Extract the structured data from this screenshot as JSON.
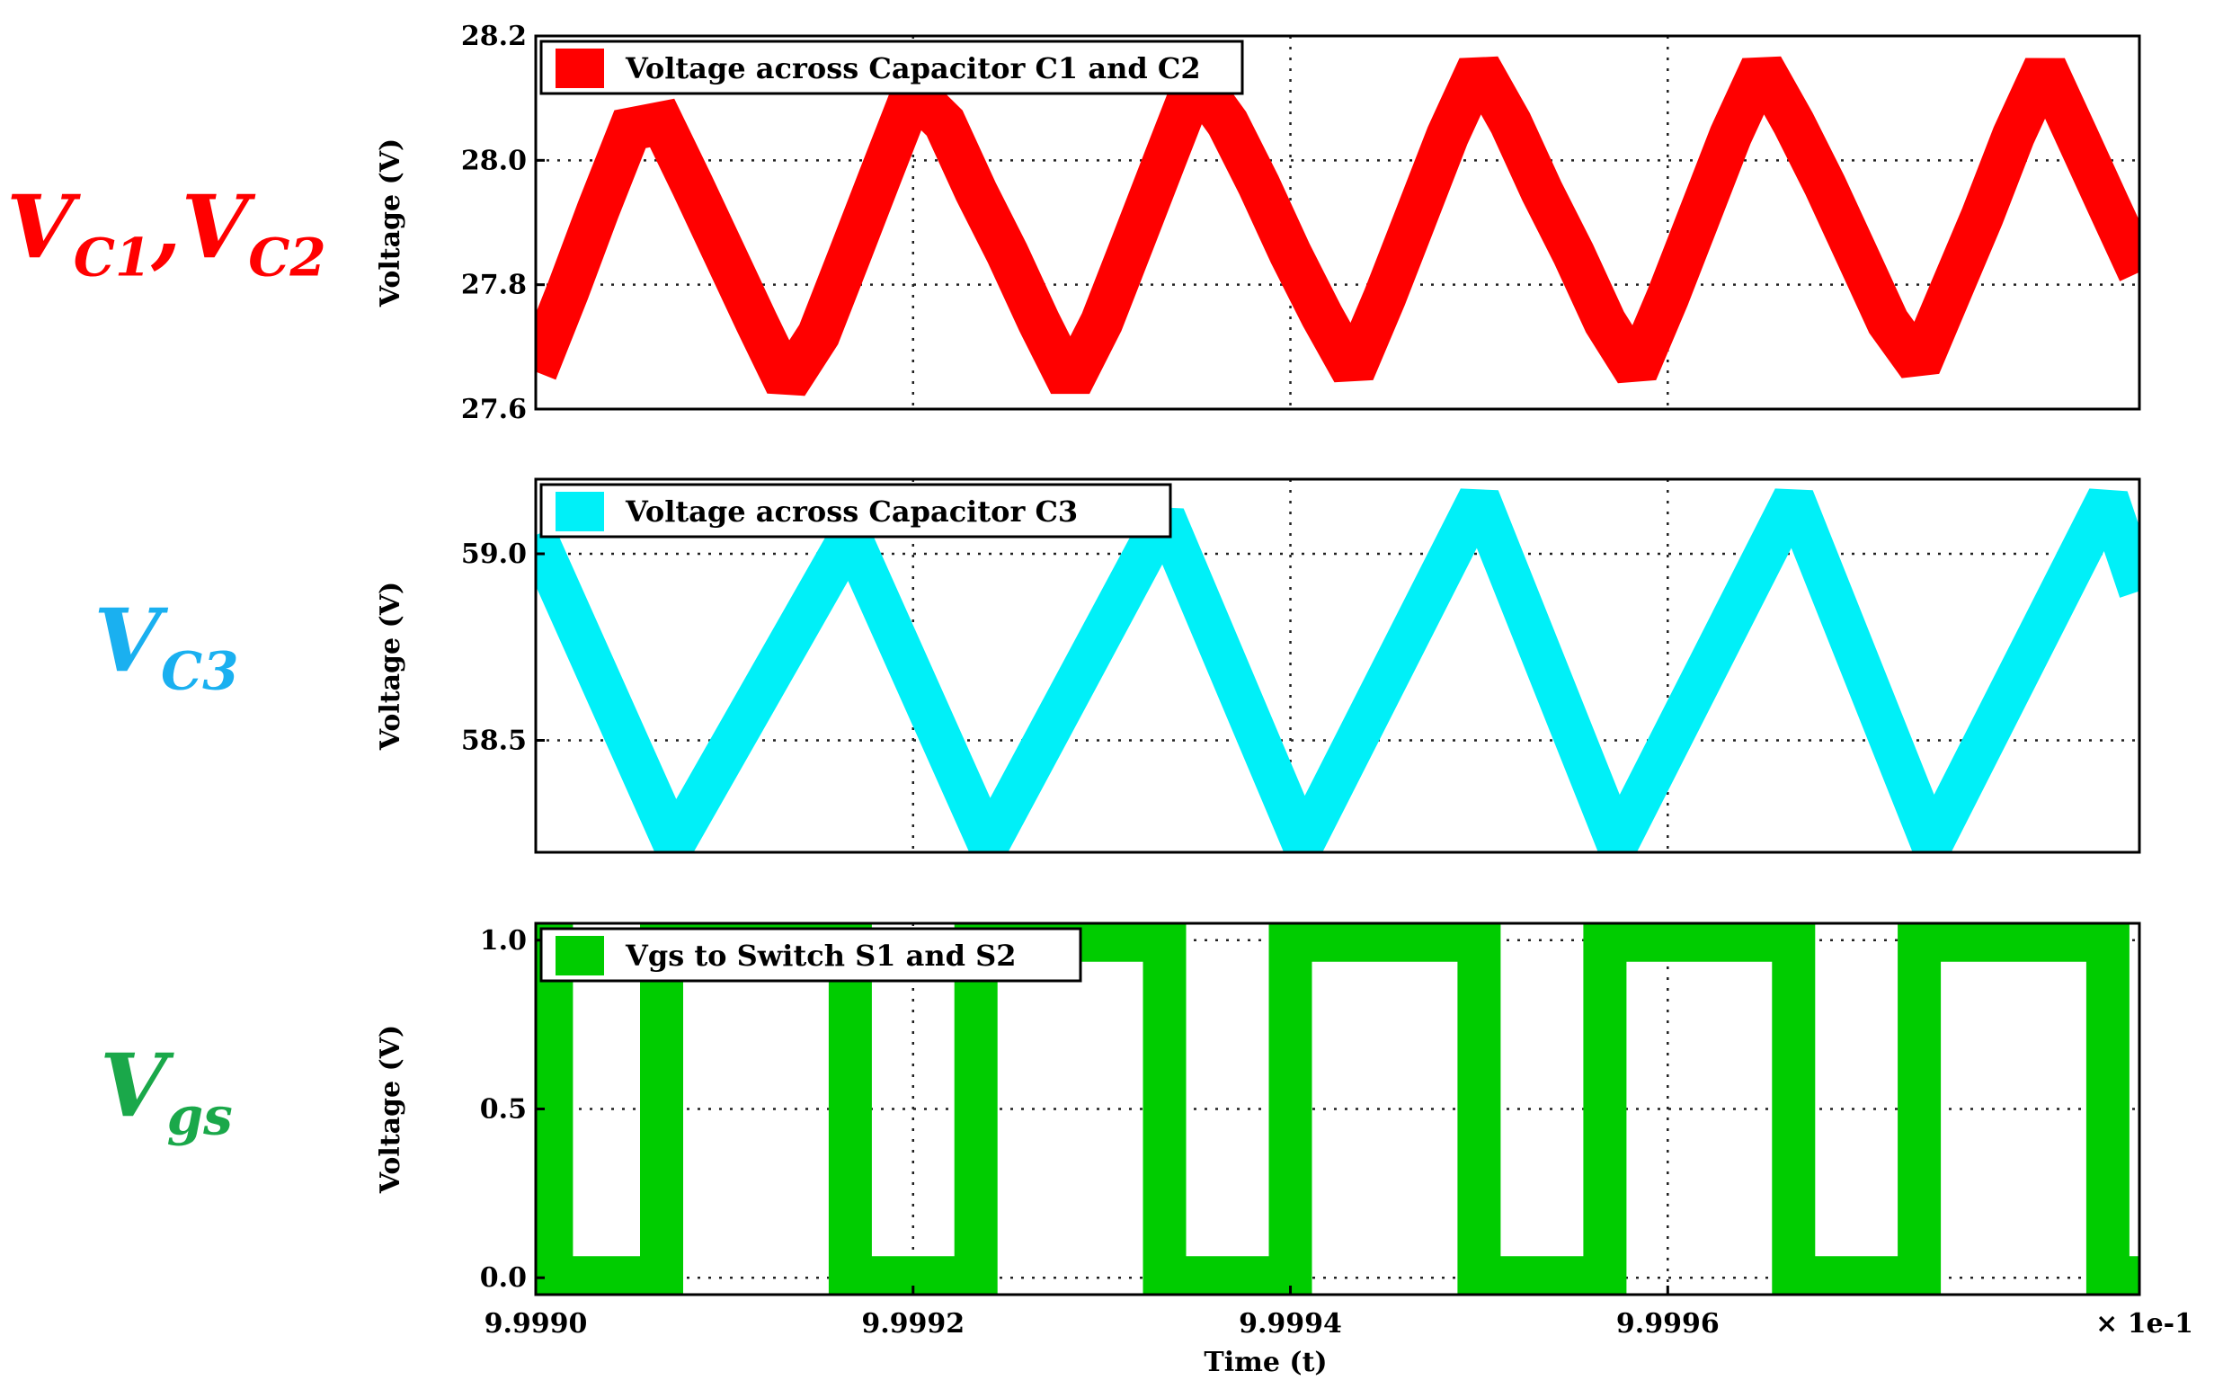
{
  "side_labels": [
    {
      "main": "V",
      "sub": "C1",
      "sep": ",",
      "main2": "V",
      "sub2": "C2",
      "color": "#ff0000"
    },
    {
      "main": "V",
      "sub": "C3",
      "color": "#1ab0f0"
    },
    {
      "main": "V",
      "sub": "gs",
      "color": "#1aa84a"
    }
  ],
  "x_axis": {
    "label": "Time (t)",
    "ticks": [
      0.9999,
      0.99992,
      0.99994,
      0.99996
    ],
    "tick_labels": [
      "9.9990",
      "9.9992",
      "9.9994",
      "9.9996"
    ],
    "multiplier": "× 1e-1",
    "xlim": [
      0.9999,
      0.999985
    ]
  },
  "chart_data": [
    {
      "type": "line",
      "ylabel": "Voltage (V)",
      "ylim": [
        27.6,
        28.2
      ],
      "yticks": [
        27.6,
        27.8,
        28.0,
        28.2
      ],
      "ytick_labels": [
        "27.6",
        "27.8",
        "28.0",
        "28.2"
      ],
      "grid": true,
      "legend_position": "top-left",
      "series": [
        {
          "name": "Voltage across Capacitor C1 and C2",
          "color": "#ff0000",
          "x": [
            0.9999,
            0.9999017,
            0.9999033,
            0.999905,
            0.9999067,
            0.9999083,
            0.99991,
            0.9999117,
            0.9999133,
            0.999915,
            0.99991667,
            0.99991833,
            0.99992,
            0.99992167,
            0.99992333,
            0.999925,
            0.99992667,
            0.99992833,
            0.99993,
            0.99993167,
            0.99993333,
            0.999935,
            0.99993667,
            0.99993833,
            0.99994,
            0.99994167,
            0.99994333,
            0.999945,
            0.99994667,
            0.99994833,
            0.99995,
            0.99995167,
            0.99995333,
            0.999955,
            0.99995667,
            0.99995833,
            0.99996,
            0.99996167,
            0.99996333,
            0.999965,
            0.99996667,
            0.99996833,
            0.99997,
            0.99997167,
            0.99997333,
            0.999975,
            0.99997667,
            0.99997833,
            0.99998,
            0.99998167,
            0.99998333,
            0.999985
          ],
          "y": [
            27.66,
            27.79,
            27.92,
            28.05,
            28.06,
            27.96,
            27.85,
            27.74,
            27.64,
            27.72,
            27.85,
            27.98,
            28.11,
            28.06,
            27.95,
            27.85,
            27.74,
            27.64,
            27.74,
            27.87,
            28.0,
            28.13,
            28.06,
            27.96,
            27.85,
            27.75,
            27.66,
            27.78,
            27.91,
            28.04,
            28.15,
            28.06,
            27.95,
            27.85,
            27.74,
            27.66,
            27.78,
            27.91,
            28.04,
            28.15,
            28.06,
            27.96,
            27.85,
            27.74,
            27.67,
            27.79,
            27.91,
            28.04,
            28.15,
            28.04,
            27.93,
            27.82
          ]
        }
      ]
    },
    {
      "type": "line",
      "ylabel": "Voltage (V)",
      "ylim": [
        58.2,
        59.2
      ],
      "yticks": [
        58.5,
        59.0
      ],
      "ytick_labels": [
        "58.5",
        "59.0"
      ],
      "grid": true,
      "legend_position": "top-left",
      "series": [
        {
          "name": "Voltage across Capacitor C3",
          "color": "#00f0f8",
          "x": [
            0.9999,
            0.99990733,
            0.99991667,
            0.999924,
            0.99993333,
            0.99994067,
            0.99995,
            0.99995733,
            0.99996667,
            0.999974,
            0.99998333,
            0.999985
          ],
          "y": [
            59.05,
            58.22,
            59.05,
            58.22,
            59.1,
            58.22,
            59.15,
            58.22,
            59.15,
            58.22,
            59.15,
            58.9
          ]
        }
      ]
    },
    {
      "type": "line",
      "ylabel": "Voltage (V)",
      "ylim": [
        -0.05,
        1.05
      ],
      "yticks": [
        0.0,
        0.5,
        1.0
      ],
      "ytick_labels": [
        "0.0",
        "0.5",
        "1.0"
      ],
      "grid": true,
      "legend_position": "top-left",
      "series": [
        {
          "name": "Vgs to Switch S1 and S2",
          "color": "#00cc00",
          "x": [
            0.9999,
            0.9999,
            0.99990083,
            0.99990083,
            0.99990667,
            0.99990667,
            0.99991667,
            0.99991667,
            0.99992333,
            0.99992333,
            0.99993333,
            0.99993333,
            0.99994,
            0.99994,
            0.99995,
            0.99995,
            0.99995667,
            0.99995667,
            0.99996667,
            0.99996667,
            0.99997333,
            0.99997333,
            0.99998333,
            0.99998333,
            0.999985
          ],
          "y": [
            0,
            1,
            1,
            0,
            0,
            1,
            1,
            0,
            0,
            1,
            1,
            0,
            0,
            1,
            1,
            0,
            0,
            1,
            1,
            0,
            0,
            1,
            1,
            0,
            0
          ]
        }
      ]
    }
  ]
}
